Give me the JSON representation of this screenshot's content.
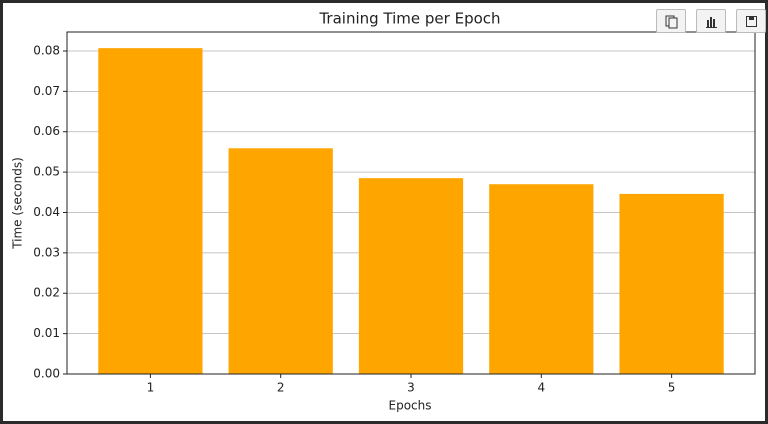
{
  "chart_data": {
    "type": "bar",
    "title": "Training Time per Epoch",
    "x_label": "Epochs",
    "y_label": "Time (seconds)",
    "categories": [
      "1",
      "2",
      "3",
      "4",
      "5"
    ],
    "values": [
      0.0807,
      0.0559,
      0.0485,
      0.047,
      0.0446
    ],
    "color": "#ffa500",
    "ylim": [
      0,
      0.0847
    ],
    "yticks": [
      {
        "value": 0,
        "label": "0.00"
      },
      0.01,
      0.02,
      0.03,
      0.04,
      0.05,
      0.06,
      0.07,
      0.08
    ],
    "grid": true
  }
}
